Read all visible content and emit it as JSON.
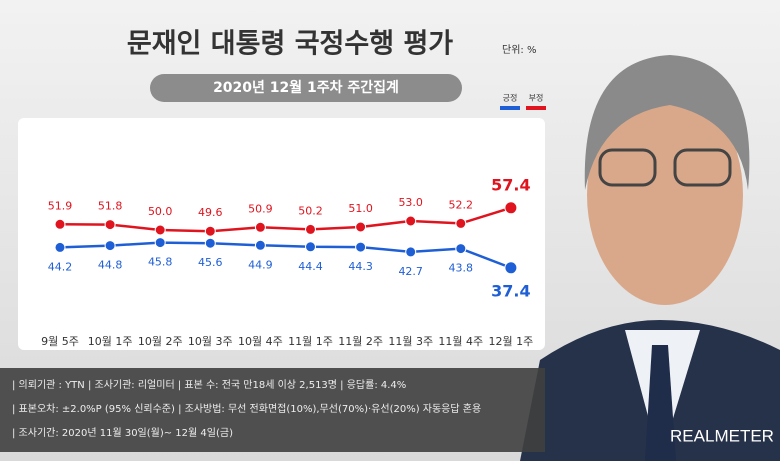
{
  "chart_data": {
    "type": "line",
    "title": "문재인 대통령 국정수행 평가",
    "unit_label": "단위: %",
    "subtitle": "2020년 12월 1주차 주간집계",
    "categories": [
      "9월 5주",
      "10월 1주",
      "10월 2주",
      "10월 3주",
      "10월 4주",
      "11월 1주",
      "11월 2주",
      "11월 3주",
      "11월 4주",
      "12월 1주"
    ],
    "series": [
      {
        "name": "긍정",
        "color": "#1f5fd6",
        "values": [
          44.2,
          44.8,
          45.8,
          45.6,
          44.9,
          44.4,
          44.3,
          42.7,
          43.8,
          37.4
        ],
        "value_labels": [
          "44.2",
          "44.8",
          "45.8",
          "45.6",
          "44.9",
          "44.4",
          "44.3",
          "42.7",
          "43.8",
          "37.4"
        ]
      },
      {
        "name": "부정",
        "color": "#e0141e",
        "values": [
          51.9,
          51.8,
          50.0,
          49.6,
          50.9,
          50.2,
          51.0,
          53.0,
          52.2,
          57.4
        ],
        "value_labels": [
          "51.9",
          "51.8",
          "50.0",
          "49.6",
          "50.9",
          "50.2",
          "51.0",
          "53.0",
          "52.2",
          "57.4"
        ]
      }
    ],
    "ylim": [
      30,
      65
    ]
  },
  "footer": {
    "lines": [
      "| 의뢰기관 : YTN  |  조사기관: 리얼미터  |  표본 수: 전국 만18세 이상 2,513명  |  응답률: 4.4%",
      "| 표본오차: ±2.0%P (95% 신뢰수준)  |  조사방법: 무선 전화면접(10%),무선(70%)·유선(20%) 자동응답 혼용",
      "| 조사기간: 2020년 11월 30일(월)~ 12월 4일(금)"
    ]
  },
  "brand": "REALMETER"
}
